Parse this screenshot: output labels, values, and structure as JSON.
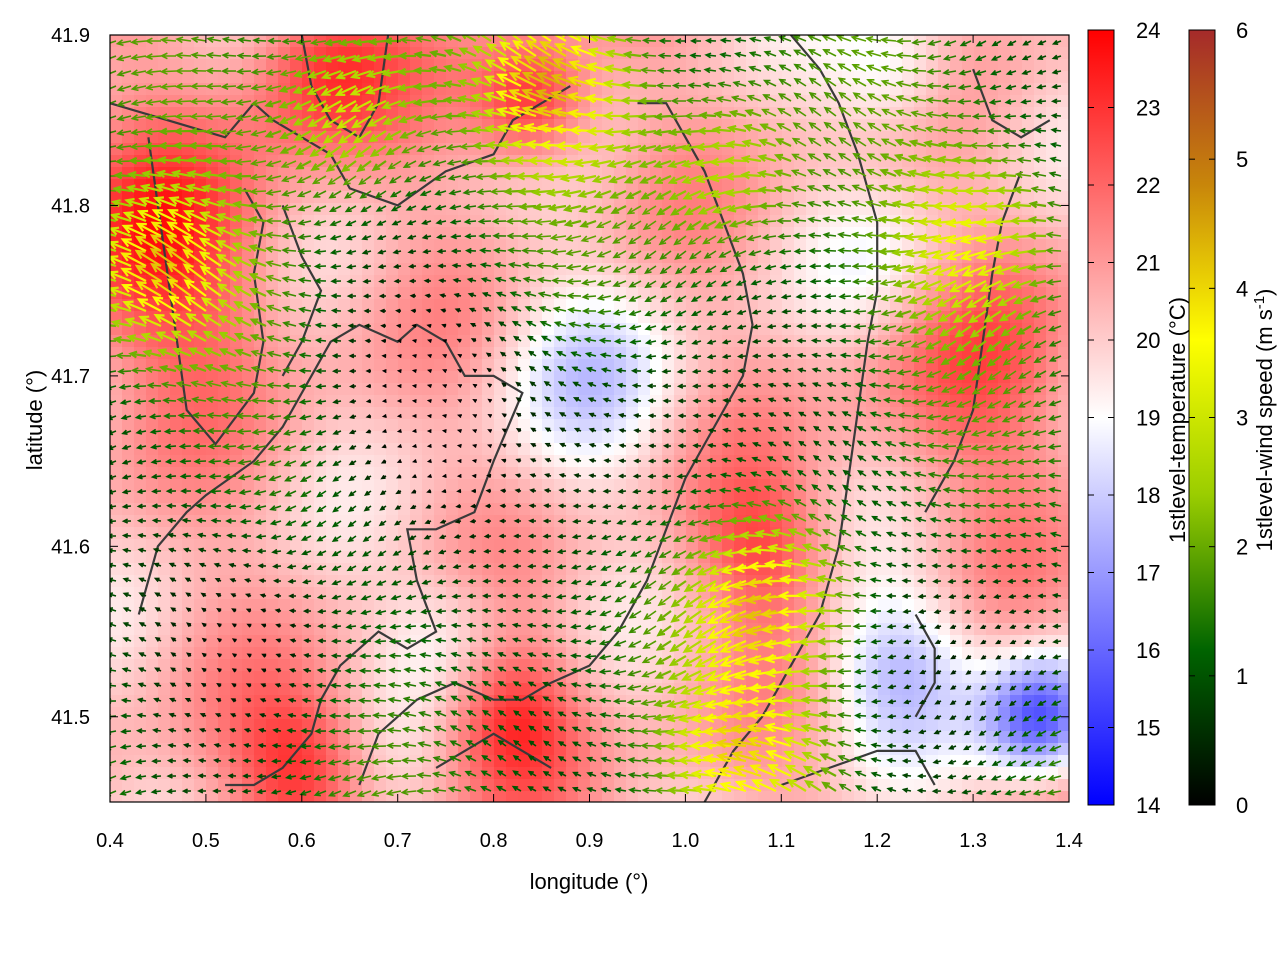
{
  "chart_data": {
    "type": "heatmap",
    "title": "",
    "xlabel": "longitude (°)",
    "ylabel": "latitude (°)",
    "xlim": [
      0.4,
      1.4
    ],
    "ylim": [
      41.45,
      41.9
    ],
    "x_ticks": [
      "0.4",
      "0.5",
      "0.6",
      "0.7",
      "0.8",
      "0.9",
      "1.0",
      "1.1",
      "1.2",
      "1.3",
      "1.4"
    ],
    "y_ticks": [
      "41.5",
      "41.6",
      "41.7",
      "41.8",
      "41.9"
    ],
    "temperature_colorbar": {
      "label": "1stlevel-temperature (°C)",
      "range": [
        14,
        24
      ],
      "ticks": [
        "14",
        "15",
        "16",
        "17",
        "18",
        "19",
        "20",
        "21",
        "22",
        "23",
        "24"
      ],
      "colors": [
        "#0000ff",
        "#ffffff",
        "#ff0000"
      ]
    },
    "wind_colorbar": {
      "label_main": "1stlevel-wind speed (m s",
      "label_sup": "-1",
      "label_end": ")",
      "range": [
        0,
        6
      ],
      "ticks": [
        "0",
        "1",
        "2",
        "3",
        "4",
        "5",
        "6"
      ],
      "colors": [
        "#000000",
        "#006400",
        "#9acd00",
        "#ffff00",
        "#c8860a",
        "#a52a2a"
      ]
    },
    "temperature_field": {
      "base": 20.5,
      "warm_spots": [
        {
          "lon": 0.45,
          "lat": 41.77,
          "dT": 2.5,
          "r": 0.12
        },
        {
          "lon": 0.62,
          "lat": 41.88,
          "dT": 2.5,
          "r": 0.08
        },
        {
          "lon": 0.84,
          "lat": 41.86,
          "dT": 3.0,
          "r": 0.06
        },
        {
          "lon": 0.6,
          "lat": 41.47,
          "dT": 2.5,
          "r": 0.07
        },
        {
          "lon": 0.82,
          "lat": 41.5,
          "dT": 2.5,
          "r": 0.07
        },
        {
          "lon": 1.08,
          "lat": 41.6,
          "dT": 2.0,
          "r": 0.07
        },
        {
          "lon": 1.3,
          "lat": 41.7,
          "dT": 1.5,
          "r": 0.12
        }
      ],
      "cool_spots": [
        {
          "lon": 1.37,
          "lat": 41.5,
          "dT": -5.0,
          "r": 0.06
        },
        {
          "lon": 1.22,
          "lat": 41.53,
          "dT": -2.5,
          "r": 0.08
        },
        {
          "lon": 1.22,
          "lat": 41.88,
          "dT": -2.0,
          "r": 0.07
        },
        {
          "lon": 0.9,
          "lat": 41.7,
          "dT": -1.8,
          "r": 0.1
        },
        {
          "lon": 0.75,
          "lat": 41.55,
          "dT": -1.5,
          "r": 0.07
        },
        {
          "lon": 1.22,
          "lat": 41.76,
          "dT": -1.2,
          "r": 0.08
        }
      ]
    },
    "wind_field": {
      "base_direction": "westward",
      "strong_zones": [
        {
          "lon": 0.46,
          "lat": 41.76,
          "speed": 4.0
        },
        {
          "lon": 0.66,
          "lat": 41.86,
          "speed": 3.5
        },
        {
          "lon": 0.88,
          "lat": 41.87,
          "speed": 4.0
        },
        {
          "lon": 1.1,
          "lat": 41.57,
          "speed": 4.2
        },
        {
          "lon": 1.08,
          "lat": 41.48,
          "speed": 3.6
        },
        {
          "lon": 1.32,
          "lat": 41.78,
          "speed": 3.2
        },
        {
          "lon": 1.05,
          "lat": 41.82,
          "speed": 3.2
        }
      ],
      "calm_zones": [
        {
          "lon": 0.72,
          "lat": 41.68,
          "speed": 0.2
        },
        {
          "lon": 0.58,
          "lat": 41.55,
          "speed": 0.3
        },
        {
          "lon": 0.95,
          "lat": 41.66,
          "speed": 0.3
        },
        {
          "lon": 1.35,
          "lat": 41.55,
          "speed": 0.4
        }
      ]
    },
    "boundaries": [
      [
        [
          0.4,
          41.86
        ],
        [
          0.46,
          41.85
        ],
        [
          0.52,
          41.84
        ],
        [
          0.55,
          41.86
        ],
        [
          0.57,
          41.85
        ],
        [
          0.6,
          41.84
        ],
        [
          0.63,
          41.83
        ],
        [
          0.65,
          41.81
        ],
        [
          0.7,
          41.8
        ],
        [
          0.75,
          41.82
        ],
        [
          0.8,
          41.83
        ],
        [
          0.82,
          41.85
        ],
        [
          0.85,
          41.86
        ],
        [
          0.88,
          41.87
        ]
      ],
      [
        [
          0.6,
          41.9
        ],
        [
          0.61,
          41.87
        ],
        [
          0.63,
          41.85
        ],
        [
          0.66,
          41.84
        ]
      ],
      [
        [
          0.69,
          41.9
        ],
        [
          0.68,
          41.86
        ],
        [
          0.66,
          41.84
        ]
      ],
      [
        [
          0.54,
          41.81
        ],
        [
          0.56,
          41.79
        ],
        [
          0.55,
          41.76
        ],
        [
          0.56,
          41.72
        ],
        [
          0.55,
          41.69
        ],
        [
          0.51,
          41.66
        ],
        [
          0.48,
          41.68
        ],
        [
          0.47,
          41.72
        ],
        [
          0.46,
          41.76
        ],
        [
          0.45,
          41.8
        ],
        [
          0.44,
          41.84
        ]
      ],
      [
        [
          0.43,
          41.56
        ],
        [
          0.45,
          41.6
        ],
        [
          0.48,
          41.62
        ],
        [
          0.5,
          41.63
        ],
        [
          0.55,
          41.65
        ],
        [
          0.58,
          41.67
        ],
        [
          0.61,
          41.7
        ],
        [
          0.63,
          41.72
        ],
        [
          0.66,
          41.73
        ],
        [
          0.7,
          41.72
        ],
        [
          0.72,
          41.73
        ],
        [
          0.75,
          41.72
        ],
        [
          0.77,
          41.7
        ],
        [
          0.8,
          41.7
        ],
        [
          0.83,
          41.69
        ],
        [
          0.8,
          41.65
        ],
        [
          0.78,
          41.62
        ],
        [
          0.74,
          41.61
        ],
        [
          0.71,
          41.61
        ],
        [
          0.72,
          41.58
        ],
        [
          0.74,
          41.55
        ],
        [
          0.71,
          41.54
        ],
        [
          0.68,
          41.55
        ],
        [
          0.64,
          41.53
        ],
        [
          0.62,
          41.51
        ],
        [
          0.61,
          41.49
        ],
        [
          0.58,
          41.47
        ],
        [
          0.55,
          41.46
        ],
        [
          0.52,
          41.46
        ]
      ],
      [
        [
          0.58,
          41.8
        ],
        [
          0.6,
          41.77
        ],
        [
          0.62,
          41.75
        ],
        [
          0.6,
          41.72
        ],
        [
          0.58,
          41.7
        ]
      ],
      [
        [
          0.66,
          41.46
        ],
        [
          0.68,
          41.49
        ],
        [
          0.72,
          41.51
        ],
        [
          0.76,
          41.52
        ],
        [
          0.8,
          41.51
        ],
        [
          0.83,
          41.51
        ],
        [
          0.86,
          41.52
        ],
        [
          0.9,
          41.53
        ],
        [
          0.93,
          41.55
        ],
        [
          0.96,
          41.58
        ],
        [
          0.98,
          41.61
        ],
        [
          1.0,
          41.64
        ],
        [
          1.03,
          41.67
        ],
        [
          1.06,
          41.7
        ],
        [
          1.07,
          41.73
        ],
        [
          1.06,
          41.76
        ],
        [
          1.04,
          41.79
        ],
        [
          1.02,
          41.82
        ],
        [
          1.0,
          41.84
        ],
        [
          0.98,
          41.86
        ],
        [
          0.95,
          41.86
        ]
      ],
      [
        [
          0.74,
          41.47
        ],
        [
          0.77,
          41.48
        ],
        [
          0.8,
          41.49
        ],
        [
          0.83,
          41.48
        ],
        [
          0.86,
          41.47
        ]
      ],
      [
        [
          1.02,
          41.45
        ],
        [
          1.05,
          41.48
        ],
        [
          1.08,
          41.5
        ],
        [
          1.1,
          41.52
        ],
        [
          1.12,
          41.54
        ],
        [
          1.14,
          41.56
        ],
        [
          1.16,
          41.6
        ],
        [
          1.17,
          41.64
        ],
        [
          1.18,
          41.68
        ],
        [
          1.19,
          41.72
        ],
        [
          1.2,
          41.75
        ],
        [
          1.2,
          41.79
        ],
        [
          1.18,
          41.83
        ],
        [
          1.16,
          41.86
        ],
        [
          1.14,
          41.88
        ],
        [
          1.11,
          41.9
        ]
      ],
      [
        [
          1.1,
          41.46
        ],
        [
          1.15,
          41.47
        ],
        [
          1.2,
          41.48
        ],
        [
          1.24,
          41.48
        ],
        [
          1.26,
          41.46
        ]
      ],
      [
        [
          1.24,
          41.5
        ],
        [
          1.26,
          41.52
        ],
        [
          1.26,
          41.54
        ],
        [
          1.24,
          41.56
        ]
      ],
      [
        [
          1.3,
          41.88
        ],
        [
          1.32,
          41.85
        ],
        [
          1.35,
          41.84
        ],
        [
          1.38,
          41.85
        ]
      ],
      [
        [
          1.25,
          41.62
        ],
        [
          1.28,
          41.65
        ],
        [
          1.3,
          41.68
        ],
        [
          1.31,
          41.72
        ],
        [
          1.32,
          41.76
        ],
        [
          1.33,
          41.79
        ],
        [
          1.35,
          41.82
        ]
      ]
    ]
  }
}
